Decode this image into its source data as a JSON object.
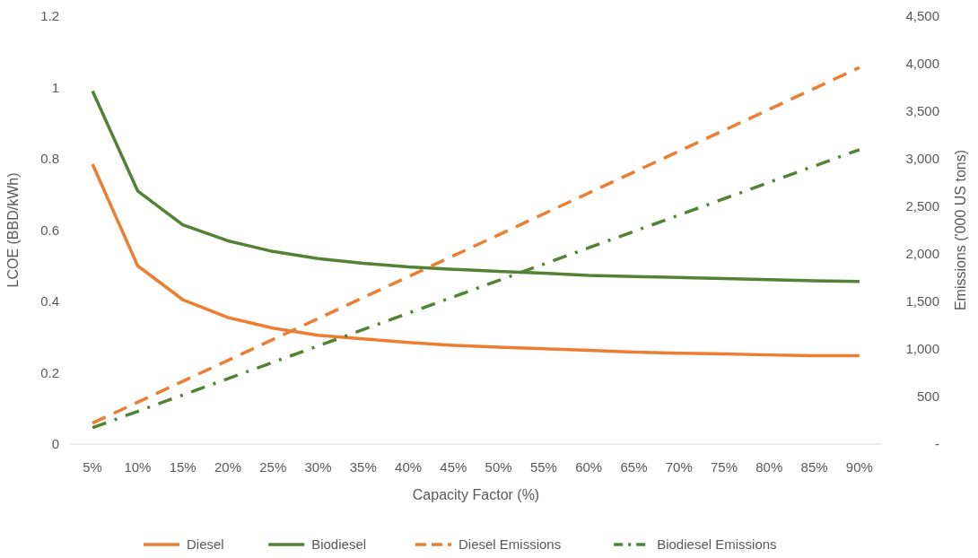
{
  "chart_data": {
    "type": "line",
    "xlabel": "Capacity Factor (%)",
    "ylabel": "LCOE (BBD/kWh)",
    "y2label": "Emissions ('000 US tons)",
    "categories": [
      "5%",
      "10%",
      "15%",
      "20%",
      "25%",
      "30%",
      "35%",
      "40%",
      "45%",
      "50%",
      "55%",
      "60%",
      "65%",
      "70%",
      "75%",
      "80%",
      "85%",
      "90%"
    ],
    "ylim": [
      0,
      1.2
    ],
    "yticks": [
      0,
      0.2,
      0.4,
      0.6,
      0.8,
      1,
      1.2
    ],
    "y2lim": [
      0,
      4500
    ],
    "y2ticks": [
      {
        "value": 0,
        "label": "-"
      },
      500,
      {
        "value": 1000,
        "label": "1,000"
      },
      {
        "value": 1500,
        "label": "1,500"
      },
      {
        "value": 2000,
        "label": "2,000"
      },
      {
        "value": 2500,
        "label": "2,500"
      },
      {
        "value": 3000,
        "label": "3,000"
      },
      {
        "value": 3500,
        "label": "3,500"
      },
      {
        "value": 4000,
        "label": "4,000"
      },
      {
        "value": 4500,
        "label": "4,500"
      }
    ],
    "grid": false,
    "legend": "bottom",
    "marker": "none",
    "series": [
      {
        "name": "Diesel",
        "color": "#ed7d31",
        "line_style": "solid",
        "values": [
          0.785,
          0.5,
          0.405,
          0.355,
          0.325,
          0.305,
          0.295,
          0.285,
          0.277,
          0.272,
          0.267,
          0.263,
          0.258,
          0.255,
          0.253,
          0.25,
          0.248,
          0.248
        ]
      },
      {
        "name": "Biodiesel",
        "color": "#548235",
        "line_style": "solid",
        "values": [
          0.99,
          0.71,
          0.615,
          0.57,
          0.54,
          0.52,
          0.507,
          0.497,
          0.49,
          0.484,
          0.479,
          0.473,
          0.47,
          0.467,
          0.464,
          0.461,
          0.458,
          0.456
        ]
      },
      {
        "name": "Diesel Emissions",
        "color": "#ed7d31",
        "line_style": "dashed",
        "axis": "y2",
        "values": [
          220,
          440,
          660,
          880,
          1100,
          1320,
          1540,
          1760,
          1980,
          2200,
          2420,
          2640,
          2860,
          3080,
          3300,
          3520,
          3740,
          3960
        ]
      },
      {
        "name": "Biodiesel Emissions",
        "color": "#548235",
        "line_style": "dashdot",
        "axis": "y2",
        "values": [
          172,
          344,
          516,
          688,
          860,
          1032,
          1204,
          1376,
          1548,
          1720,
          1892,
          2064,
          2236,
          2408,
          2580,
          2752,
          2924,
          3096
        ]
      }
    ]
  }
}
